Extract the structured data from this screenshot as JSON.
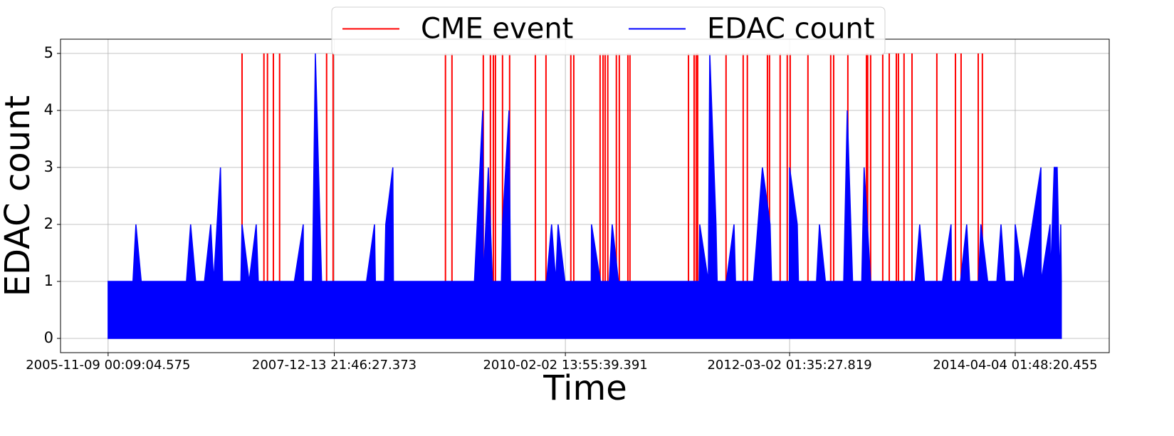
{
  "chart_data": {
    "type": "line",
    "xlabel": "Time",
    "ylabel": "EDAC count",
    "xlim": [
      "2005-06-01",
      "2015-02-16"
    ],
    "xticks": [
      "2005-11-09 00:09:04.575",
      "2007-12-13 21:46:27.373",
      "2010-02-02 13:55:39.391",
      "2012-03-02 01:35:27.819",
      "2014-04-04 01:48:20.455"
    ],
    "ylim": [
      -0.25,
      5.25
    ],
    "yticks": [
      0,
      1,
      2,
      3,
      4,
      5
    ],
    "grid": true,
    "legend": "upper center",
    "series": [
      {
        "name": "CME event",
        "color": "#ff0000",
        "kind": "vlines",
        "x": [
          "2007-02-05",
          "2007-04-20",
          "2007-05-02",
          "2007-05-22",
          "2007-06-12",
          "2007-11-18",
          "2007-12-10",
          "2008-12-24",
          "2009-01-15",
          "2009-05-01",
          "2009-05-25",
          "2009-06-04",
          "2009-06-11",
          "2009-07-05",
          "2009-07-29",
          "2009-10-24",
          "2009-11-29",
          "2010-02-21",
          "2010-03-03",
          "2010-05-31",
          "2010-06-10",
          "2010-06-17",
          "2010-06-26",
          "2010-07-25",
          "2010-08-04",
          "2010-09-02",
          "2010-09-09",
          "2011-03-26",
          "2011-04-14",
          "2011-04-21",
          "2011-04-26",
          "2011-07-31",
          "2011-09-27",
          "2011-10-11",
          "2011-12-18",
          "2011-12-25",
          "2012-01-30",
          "2012-02-23",
          "2012-03-04",
          "2012-05-03",
          "2012-07-19",
          "2012-07-29",
          "2012-09-15",
          "2012-11-17",
          "2012-11-21",
          "2012-12-01",
          "2013-01-11",
          "2013-02-02",
          "2013-02-26",
          "2013-03-05",
          "2013-03-24",
          "2013-04-20",
          "2013-07-13",
          "2013-09-14",
          "2013-10-03",
          "2013-11-30",
          "2013-12-14"
        ],
        "values": [
          5,
          5,
          5,
          5,
          5,
          5,
          5,
          5,
          5,
          5,
          5,
          5,
          5,
          5,
          5,
          5,
          5,
          5,
          5,
          5,
          5,
          5,
          5,
          5,
          5,
          5,
          5,
          5,
          5,
          5,
          5,
          5,
          5,
          5,
          5,
          5,
          5,
          5,
          5,
          5,
          5,
          5,
          5,
          5,
          5,
          5,
          5,
          5,
          5,
          5,
          5,
          5,
          5,
          5,
          5,
          5,
          5
        ]
      },
      {
        "name": "EDAC count",
        "color": "#0000ff",
        "kind": "area",
        "x": [
          "2005-11-09",
          "2005-12-01",
          "2006-01-01",
          "2006-02-01",
          "2006-02-11",
          "2006-03-01",
          "2006-04-01",
          "2006-05-01",
          "2006-06-01",
          "2006-07-01",
          "2006-08-01",
          "2006-08-15",
          "2006-09-01",
          "2006-10-01",
          "2006-10-22",
          "2006-11-01",
          "2006-11-24",
          "2006-12-01",
          "2007-01-01",
          "2007-02-01",
          "2007-02-05",
          "2007-03-01",
          "2007-03-25",
          "2007-04-01",
          "2007-05-01",
          "2007-06-01",
          "2007-07-01",
          "2007-08-01",
          "2007-08-31",
          "2007-09-01",
          "2007-10-01",
          "2007-10-11",
          "2007-11-01",
          "2007-12-01",
          "2008-01-01",
          "2008-02-01",
          "2008-03-01",
          "2008-04-01",
          "2008-04-28",
          "2008-05-01",
          "2008-06-01",
          "2008-06-05",
          "2008-06-29",
          "2008-07-01",
          "2008-08-01",
          "2008-09-01",
          "2008-10-01",
          "2008-11-01",
          "2008-12-01",
          "2009-01-01",
          "2009-02-01",
          "2009-03-01",
          "2009-04-01",
          "2009-04-29",
          "2009-05-01",
          "2009-05-18",
          "2009-05-25",
          "2009-06-01",
          "2009-07-01",
          "2009-07-05",
          "2009-07-27",
          "2009-08-01",
          "2009-09-01",
          "2009-10-01",
          "2009-11-01",
          "2009-12-01",
          "2009-12-18",
          "2010-01-01",
          "2010-01-09",
          "2010-02-01",
          "2010-03-01",
          "2010-04-01",
          "2010-05-01",
          "2010-05-02",
          "2010-06-01",
          "2010-07-01",
          "2010-07-11",
          "2010-08-01",
          "2010-09-01",
          "2010-10-01",
          "2010-11-01",
          "2010-12-01",
          "2011-01-01",
          "2011-02-01",
          "2011-03-01",
          "2011-04-01",
          "2011-05-01",
          "2011-05-03",
          "2011-06-01",
          "2011-06-06",
          "2011-06-27",
          "2011-07-01",
          "2011-08-01",
          "2011-08-27",
          "2011-09-01",
          "2011-10-01",
          "2011-11-01",
          "2011-12-01",
          "2011-12-27",
          "2012-01-01",
          "2012-02-01",
          "2012-03-01",
          "2012-03-02",
          "2012-03-28",
          "2012-04-01",
          "2012-05-01",
          "2012-06-01",
          "2012-06-11",
          "2012-07-01",
          "2012-08-01",
          "2012-09-01",
          "2012-09-13",
          "2012-10-01",
          "2012-11-01",
          "2012-11-09",
          "2012-12-01",
          "2013-01-01",
          "2013-02-01",
          "2013-03-01",
          "2013-04-01",
          "2013-05-01",
          "2013-05-16",
          "2013-06-01",
          "2013-07-01",
          "2013-08-01",
          "2013-08-30",
          "2013-09-01",
          "2013-10-01",
          "2013-10-22",
          "2013-11-01",
          "2013-12-01",
          "2013-12-09",
          "2014-01-01",
          "2014-02-01",
          "2014-02-15",
          "2014-03-01",
          "2014-04-01",
          "2014-04-04",
          "2014-05-01",
          "2014-06-01",
          "2014-06-30",
          "2014-07-01",
          "2014-07-31",
          "2014-08-01",
          "2014-08-14",
          "2014-08-24",
          "2014-09-01",
          "2014-09-05",
          "2014-09-07"
        ],
        "values": [
          1,
          1,
          1,
          1,
          2,
          1,
          1,
          1,
          1,
          1,
          1,
          2,
          1,
          1,
          2,
          1,
          3,
          1,
          1,
          1,
          2,
          1,
          2,
          1,
          1,
          1,
          1,
          1,
          2,
          1,
          1,
          5,
          1,
          1,
          1,
          1,
          1,
          1,
          2,
          1,
          1,
          2,
          3,
          1,
          1,
          1,
          1,
          1,
          1,
          1,
          1,
          1,
          1,
          4,
          1,
          3,
          2,
          1,
          1,
          2,
          4,
          1,
          1,
          1,
          1,
          1,
          2,
          1,
          2,
          1,
          1,
          1,
          1,
          2,
          1,
          1,
          2,
          1,
          1,
          1,
          1,
          1,
          1,
          1,
          1,
          1,
          1,
          2,
          1,
          5,
          2,
          1,
          1,
          2,
          1,
          1,
          1,
          3,
          2,
          1,
          1,
          1,
          3,
          2,
          1,
          1,
          1,
          2,
          1,
          1,
          1,
          4,
          1,
          1,
          3,
          1,
          1,
          1,
          1,
          1,
          1,
          2,
          1,
          1,
          1,
          2,
          1,
          1,
          2,
          1,
          1,
          2,
          1,
          1,
          2,
          1,
          1,
          2,
          1,
          2,
          3,
          1,
          2,
          1,
          3,
          3,
          1,
          2,
          1
        ]
      }
    ]
  }
}
